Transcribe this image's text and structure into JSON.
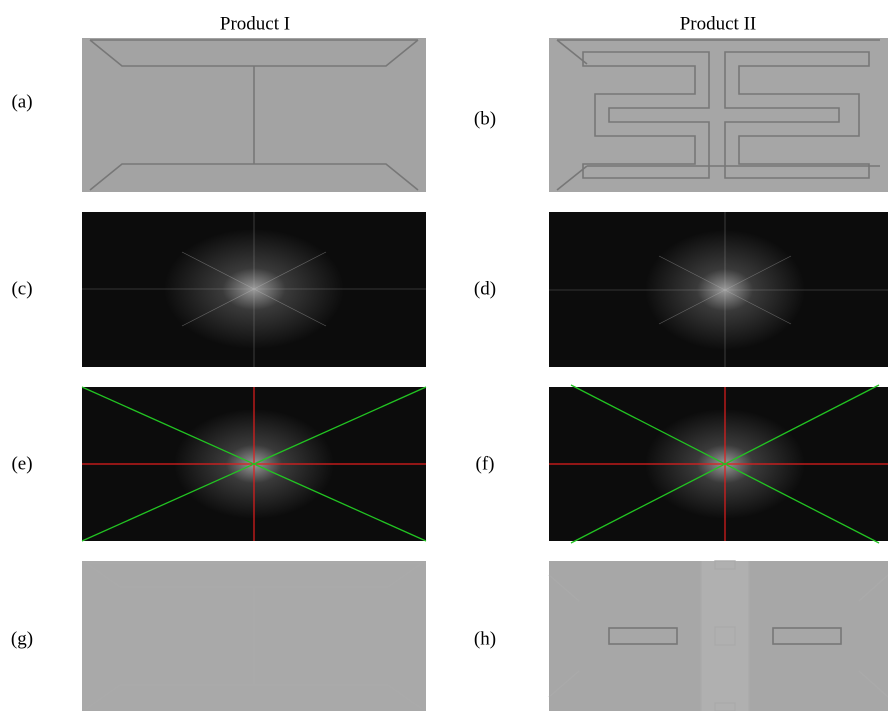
{
  "header": {
    "columns": [
      "Product I",
      "Product II"
    ]
  },
  "panels": [
    {
      "label": "(a)"
    },
    {
      "label": "(b)"
    },
    {
      "label": "(c)"
    },
    {
      "label": "(d)"
    },
    {
      "label": "(e)"
    },
    {
      "label": "(f)"
    },
    {
      "label": "(g)"
    },
    {
      "label": "(h)"
    }
  ]
}
